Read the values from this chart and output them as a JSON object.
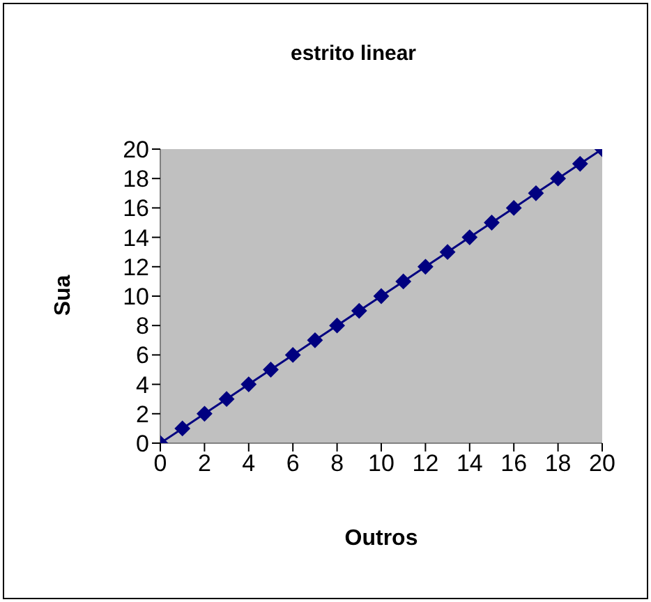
{
  "chart_data": {
    "type": "line",
    "title": "estrito linear",
    "xlabel": "Outros",
    "ylabel": "Sua",
    "x": [
      0,
      1,
      2,
      3,
      4,
      5,
      6,
      7,
      8,
      9,
      10,
      11,
      12,
      13,
      14,
      15,
      16,
      17,
      18,
      19,
      20
    ],
    "series": [
      {
        "color": "#000080",
        "values": [
          0,
          1,
          2,
          3,
          4,
          5,
          6,
          7,
          8,
          9,
          10,
          11,
          12,
          13,
          14,
          15,
          16,
          17,
          18,
          19,
          20
        ]
      }
    ],
    "xlim": [
      0,
      20
    ],
    "xticks": [
      0,
      2,
      4,
      6,
      8,
      10,
      12,
      14,
      16,
      18,
      20
    ],
    "ylim": [
      0,
      20
    ],
    "yticks": [
      0,
      2,
      4,
      6,
      8,
      10,
      12,
      14,
      16,
      18,
      20
    ],
    "grid": false,
    "legend": false,
    "marker": "diamond",
    "line_style": "solid"
  }
}
